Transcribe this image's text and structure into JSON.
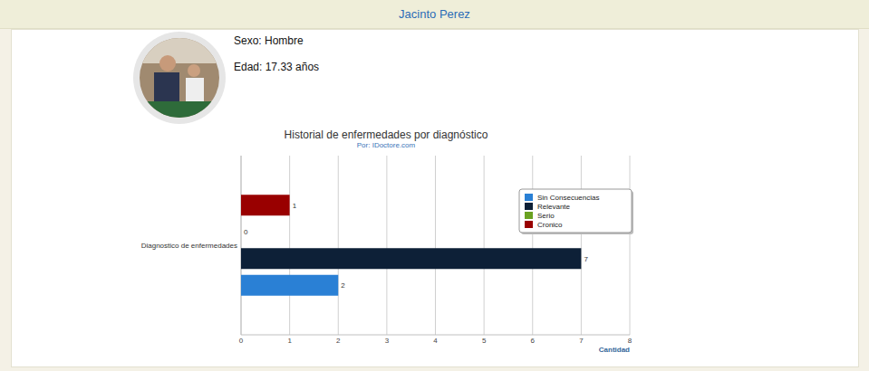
{
  "header": {
    "name": "Jacinto Perez"
  },
  "profile": {
    "sex": "Sexo: Hombre",
    "age": "Edad: 17.33 años"
  },
  "chart_data": {
    "type": "bar",
    "orientation": "horizontal",
    "title": "Historial de enfermedades por diagnóstico",
    "subtitle": "Por: IDoctore.com",
    "categories": [
      "Diagnostico de enfermedades"
    ],
    "series": [
      {
        "name": "Sin Consecuencias",
        "color": "#2a80d5",
        "values": [
          2
        ]
      },
      {
        "name": "Relevante",
        "color": "#0d2037",
        "values": [
          7
        ]
      },
      {
        "name": "Serio",
        "color": "#6aa121",
        "values": [
          0
        ]
      },
      {
        "name": "Cronico",
        "color": "#990000",
        "values": [
          1
        ]
      }
    ],
    "xlim": [
      0,
      8
    ],
    "xticks": [
      0,
      1,
      2,
      3,
      4,
      5,
      6,
      7,
      8
    ],
    "xlabel": "Cantidad",
    "grid": true,
    "legend": "upper right",
    "data_labels": true
  }
}
